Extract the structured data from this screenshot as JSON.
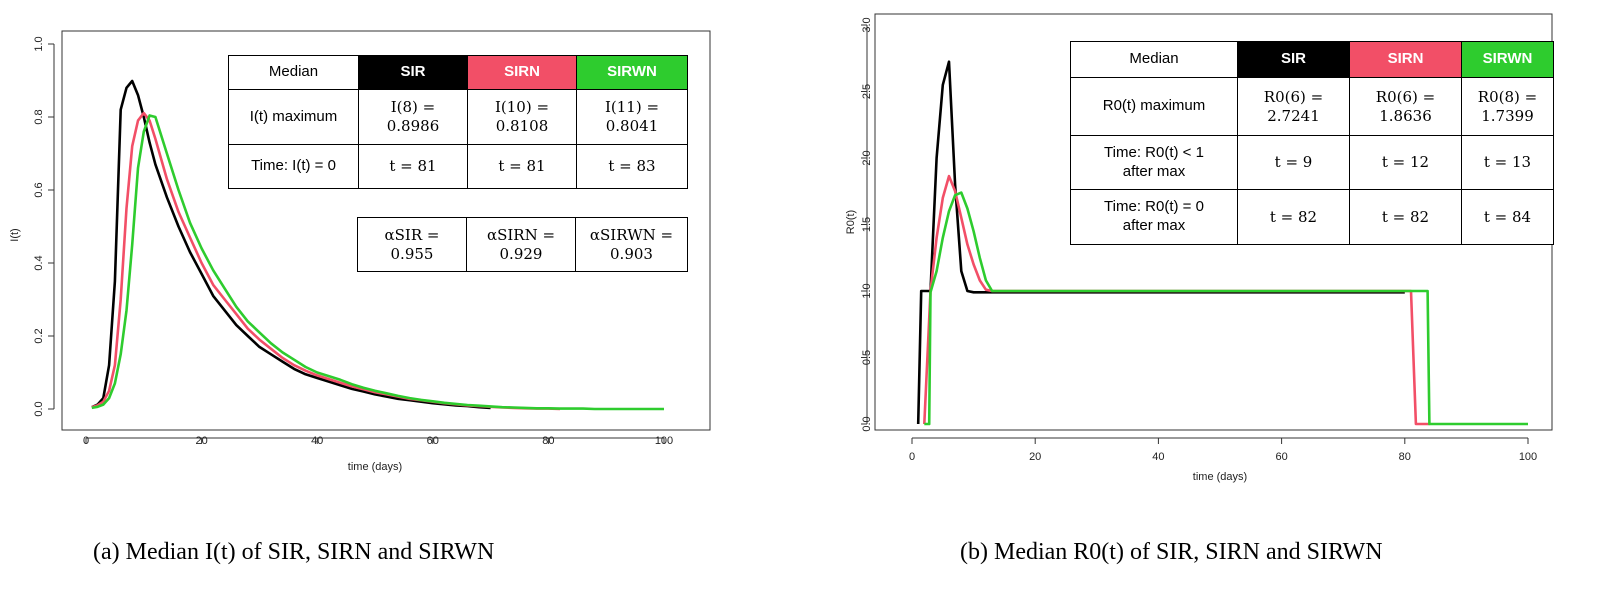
{
  "chart_data": [
    {
      "type": "line",
      "id": "a",
      "title": "",
      "xlabel": "time (days)",
      "ylabel": "I(t)",
      "xlim": [
        0,
        100
      ],
      "ylim": [
        0,
        1.0
      ],
      "xticks": [
        0,
        20,
        40,
        60,
        80,
        100
      ],
      "yticks": [
        0.0,
        0.2,
        0.4,
        0.6,
        0.8,
        1.0
      ],
      "ytick_labels": [
        "0.0",
        "0.2",
        "0.4",
        "0.6",
        "0.8",
        "1.0"
      ],
      "series": [
        {
          "name": "SIR",
          "color": "#000000",
          "x": [
            1,
            2,
            3,
            4,
            5,
            6,
            7,
            8,
            9,
            10,
            11,
            12,
            14,
            16,
            18,
            20,
            22,
            24,
            26,
            28,
            30,
            32,
            34,
            36,
            38,
            40,
            42,
            44,
            46,
            48,
            50,
            52,
            54,
            56,
            58,
            60,
            62,
            64,
            66,
            68,
            70
          ],
          "y": [
            0.005,
            0.012,
            0.03,
            0.12,
            0.35,
            0.82,
            0.88,
            0.8986,
            0.86,
            0.8,
            0.73,
            0.67,
            0.58,
            0.5,
            0.43,
            0.37,
            0.31,
            0.27,
            0.23,
            0.2,
            0.17,
            0.15,
            0.13,
            0.11,
            0.095,
            0.085,
            0.075,
            0.065,
            0.055,
            0.048,
            0.04,
            0.034,
            0.028,
            0.024,
            0.02,
            0.016,
            0.013,
            0.01,
            0.008,
            0.005,
            0.003
          ]
        },
        {
          "name": "SIRN",
          "color": "#f24f67",
          "x": [
            1,
            2,
            3,
            4,
            5,
            6,
            7,
            8,
            9,
            10,
            11,
            12,
            14,
            16,
            18,
            20,
            22,
            24,
            26,
            28,
            30,
            32,
            34,
            36,
            38,
            40,
            42,
            44,
            46,
            48,
            50,
            52,
            54,
            56,
            58,
            60,
            62,
            64,
            66,
            68,
            70,
            72,
            74,
            76,
            78,
            80,
            82
          ],
          "y": [
            0.005,
            0.01,
            0.02,
            0.05,
            0.12,
            0.3,
            0.55,
            0.72,
            0.79,
            0.8108,
            0.79,
            0.74,
            0.63,
            0.54,
            0.47,
            0.4,
            0.34,
            0.3,
            0.26,
            0.22,
            0.19,
            0.165,
            0.14,
            0.12,
            0.105,
            0.092,
            0.082,
            0.072,
            0.062,
            0.054,
            0.046,
            0.04,
            0.034,
            0.028,
            0.024,
            0.02,
            0.016,
            0.013,
            0.01,
            0.008,
            0.006,
            0.004,
            0.003,
            0.002,
            0.001,
            0.001,
            0.0
          ]
        },
        {
          "name": "SIRWN",
          "color": "#2ecc2e",
          "x": [
            1,
            2,
            3,
            4,
            5,
            6,
            7,
            8,
            9,
            10,
            11,
            12,
            14,
            16,
            18,
            20,
            22,
            24,
            26,
            28,
            30,
            32,
            34,
            36,
            38,
            40,
            42,
            44,
            46,
            48,
            50,
            52,
            54,
            56,
            58,
            60,
            62,
            64,
            66,
            68,
            70,
            72,
            74,
            76,
            78,
            80,
            82,
            84,
            86,
            88,
            90,
            92,
            94,
            96,
            98,
            100
          ],
          "y": [
            0.003,
            0.006,
            0.012,
            0.03,
            0.07,
            0.15,
            0.27,
            0.45,
            0.66,
            0.76,
            0.8041,
            0.8,
            0.7,
            0.6,
            0.51,
            0.44,
            0.38,
            0.33,
            0.28,
            0.24,
            0.21,
            0.18,
            0.155,
            0.135,
            0.115,
            0.1,
            0.09,
            0.08,
            0.068,
            0.058,
            0.05,
            0.043,
            0.036,
            0.03,
            0.025,
            0.021,
            0.017,
            0.014,
            0.011,
            0.009,
            0.007,
            0.005,
            0.004,
            0.003,
            0.002,
            0.002,
            0.001,
            0.001,
            0.001,
            0.0,
            0.0,
            0.0,
            0.0,
            0.0,
            0.0,
            0.0
          ]
        }
      ],
      "table": {
        "headers": [
          "Median",
          "SIR",
          "SIRN",
          "SIRWN"
        ],
        "row1_label": "I(t) maximum",
        "row1": [
          "I(8) =",
          "0.8986",
          "I(10) =",
          "0.8108",
          "I(11) =",
          "0.8041"
        ],
        "row2_label": "Time: I(t) = 0",
        "row2": [
          "t = 81",
          "t = 81",
          "t = 83"
        ],
        "alpha": [
          "αSIR =",
          "0.955",
          "αSIRN =",
          "0.929",
          "αSIRWN =",
          "0.903"
        ]
      },
      "caption_label": "(a)",
      "caption_text": "Median I(t) of SIR, SIRN and SIRWN"
    },
    {
      "type": "line",
      "id": "b",
      "title": "",
      "xlabel": "time (days)",
      "ylabel": "R0(t)",
      "xlim": [
        0,
        100
      ],
      "ylim": [
        0,
        3.0
      ],
      "xticks": [
        0,
        20,
        40,
        60,
        80,
        100
      ],
      "yticks": [
        0.0,
        0.5,
        1.0,
        1.5,
        2.0,
        2.5,
        3.0
      ],
      "ytick_labels": [
        "0.0",
        "0.5",
        "1.0",
        "1.5",
        "2.0",
        "2.5",
        "3.0"
      ],
      "series": [
        {
          "name": "SIR",
          "color": "#000000",
          "x": [
            1,
            1.5,
            2,
            3,
            4,
            5,
            6,
            7,
            8,
            9,
            10,
            11,
            80
          ],
          "y": [
            0,
            1,
            1,
            1,
            2,
            2.55,
            2.7241,
            1.8,
            1.15,
            1.0,
            0.99,
            0.99,
            0.99
          ]
        },
        {
          "name": "SIRN",
          "color": "#f24f67",
          "x": [
            2,
            3,
            4,
            5,
            6,
            7,
            8,
            9,
            10,
            11,
            12,
            13,
            80,
            81,
            81.8,
            82,
            84
          ],
          "y": [
            0,
            1,
            1.4,
            1.7,
            1.8636,
            1.75,
            1.55,
            1.35,
            1.2,
            1.08,
            1.01,
            1.0,
            1.0,
            1.0,
            0,
            0,
            0
          ]
        },
        {
          "name": "SIRWN",
          "color": "#2ecc2e",
          "x": [
            2,
            2.8,
            3,
            4,
            5,
            6,
            7,
            8,
            9,
            10,
            11,
            12,
            13,
            83,
            83.7,
            84,
            100
          ],
          "y": [
            0,
            0,
            0.99,
            1.15,
            1.4,
            1.6,
            1.72,
            1.7399,
            1.62,
            1.45,
            1.25,
            1.08,
            1.0,
            1.0,
            1.0,
            0,
            0
          ]
        }
      ],
      "table": {
        "headers": [
          "Median",
          "SIR",
          "SIRN",
          "SIRWN"
        ],
        "row1_label": "R0(t) maximum",
        "row1": [
          "R0(6) =",
          "2.7241",
          "R0(6) =",
          "1.8636",
          "R0(8) =",
          "1.7399"
        ],
        "row2_label_1": "Time: R0(t) < 1",
        "row2_label_2": "after max",
        "row2": [
          "t = 9",
          "t = 12",
          "t = 13"
        ],
        "row3_label_1": "Time: R0(t) = 0",
        "row3_label_2": "after max",
        "row3": [
          "t = 82",
          "t = 82",
          "t = 84"
        ]
      },
      "caption_label": "(b)",
      "caption_text": "Median R0(t) of SIR, SIRN and SIRWN"
    }
  ]
}
